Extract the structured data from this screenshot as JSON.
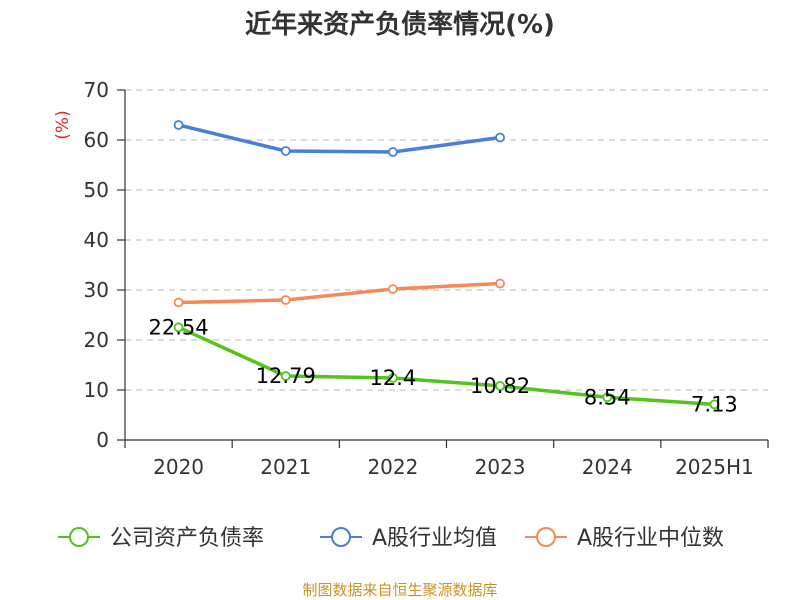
{
  "chart_data": {
    "type": "line",
    "title": "近年来资产负债率情况(%)",
    "ylabel": "(%)",
    "categories": [
      "2020",
      "2021",
      "2022",
      "2023",
      "2024",
      "2025H1"
    ],
    "ylim": [
      0,
      70
    ],
    "yticks": [
      0,
      10,
      20,
      30,
      40,
      50,
      60,
      70
    ],
    "grid": true,
    "legend_position": "bottom",
    "series": [
      {
        "name": "公司资产负债率",
        "color": "#52c41a",
        "values": [
          22.54,
          12.79,
          12.4,
          10.82,
          8.54,
          7.13
        ],
        "labels": [
          "22.54",
          "12.79",
          "12.4",
          "10.82",
          "8.54",
          "7.13"
        ]
      },
      {
        "name": "A股行业均值",
        "color": "#4a7fd9",
        "values": [
          63.0,
          57.8,
          57.6,
          60.5,
          null,
          null
        ]
      },
      {
        "name": "A股行业中位数",
        "color": "#f5895a",
        "values": [
          27.5,
          28.0,
          30.2,
          31.3,
          null,
          null
        ]
      }
    ]
  },
  "footer": "制图数据来自恒生聚源数据库"
}
